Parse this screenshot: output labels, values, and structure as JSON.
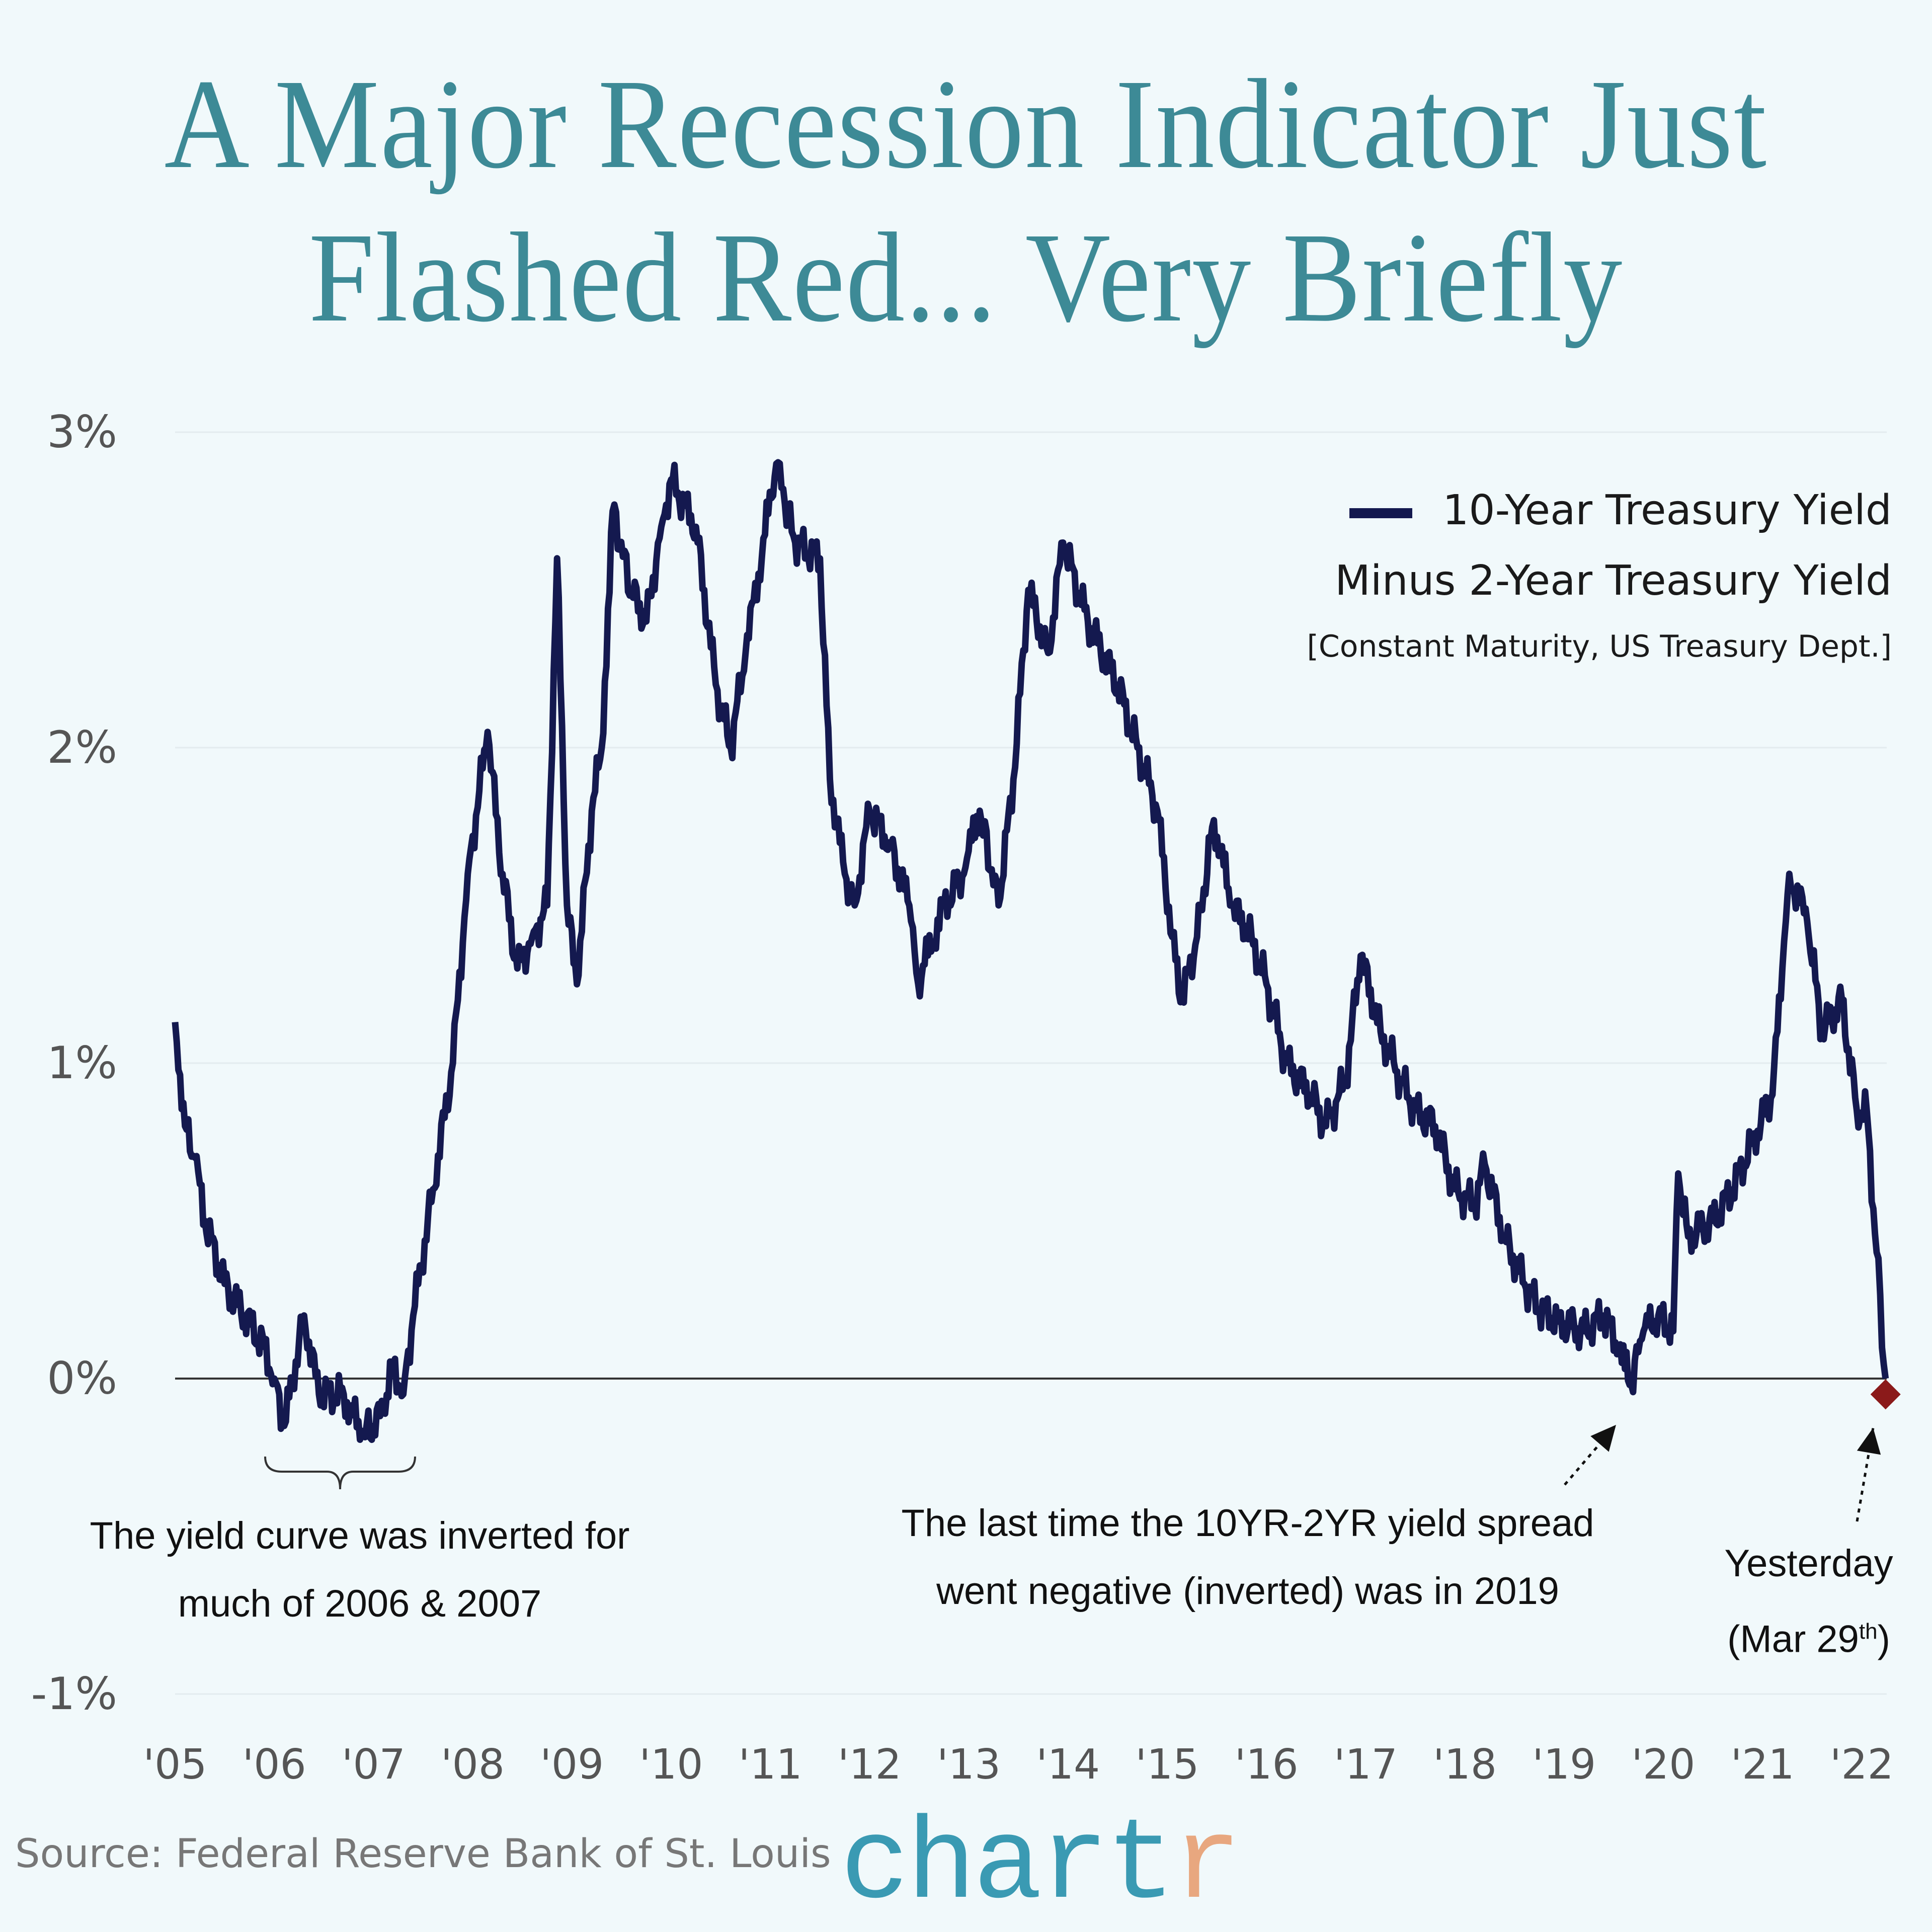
{
  "title": {
    "line1": "A Major Recession Indicator Just",
    "line2": "Flashed Red... Very Briefly"
  },
  "legend": {
    "line1": "10-Year Treasury Yield",
    "line2": "Minus 2-Year Treasury Yield",
    "line3": "[Constant Maturity, US Treasury Dept.]"
  },
  "annotations": {
    "inverted_2006": {
      "line1": "The yield curve was inverted for",
      "line2": "much of 2006 & 2007"
    },
    "last_time": {
      "line1": "The last time the 10YR-2YR yield spread",
      "line2": "went negative (inverted) was in 2019"
    },
    "yesterday": {
      "line1": "Yesterday",
      "line2_pre": "(Mar 29",
      "line2_sup": "th",
      "line2_post": ")"
    }
  },
  "source": "Source:  Federal Reserve Bank of St. Louis",
  "logo": {
    "main": "chart",
    "accent": "r"
  },
  "colors": {
    "line": "#14194f",
    "title": "#3d8a96",
    "marker": "#8b1a1a",
    "logo": "#3a9ab3",
    "logo_accent": "#e8a77f"
  },
  "chart_data": {
    "type": "line",
    "title": "A Major Recession Indicator Just Flashed Red... Very Briefly",
    "xlabel": "",
    "ylabel": "",
    "ylim": [
      -1,
      3
    ],
    "xlim": [
      2005,
      2022.25
    ],
    "yticks": [
      3,
      2,
      1,
      0,
      -1
    ],
    "ytick_labels": [
      "3%",
      "2%",
      "1%",
      "0%",
      "-1%"
    ],
    "xticks": [
      2005,
      2006,
      2007,
      2008,
      2009,
      2010,
      2011,
      2012,
      2013,
      2014,
      2015,
      2016,
      2017,
      2018,
      2019,
      2020,
      2021,
      2022
    ],
    "xtick_labels": [
      "'05",
      "'06",
      "'07",
      "'08",
      "'09",
      "'10",
      "'11",
      "'12",
      "'13",
      "'14",
      "'15",
      "'16",
      "'17",
      "'18",
      "'19",
      "'20",
      "'21",
      "'22"
    ],
    "grid": true,
    "legend_position": "top-right",
    "series": [
      {
        "name": "10-Year Treasury Yield Minus 2-Year Treasury Yield",
        "x": [
          2005.0,
          2005.1,
          2005.2,
          2005.3,
          2005.5,
          2005.7,
          2005.9,
          2006.0,
          2006.1,
          2006.3,
          2006.45,
          2006.7,
          2006.88,
          2007.0,
          2007.1,
          2007.2,
          2007.3,
          2007.4,
          2007.6,
          2007.8,
          2007.95,
          2008.15,
          2008.3,
          2008.45,
          2008.6,
          2008.75,
          2008.85,
          2008.95,
          2009.05,
          2009.2,
          2009.3,
          2009.41,
          2009.6,
          2009.75,
          2009.9,
          2010.0,
          2010.25,
          2010.45,
          2010.6,
          2010.75,
          2011.06,
          2011.25,
          2011.5,
          2011.6,
          2011.75,
          2011.85,
          2012.0,
          2012.2,
          2012.4,
          2012.49,
          2012.75,
          2012.95,
          2013.11,
          2013.3,
          2013.45,
          2013.6,
          2013.8,
          2013.95,
          2014.2,
          2014.5,
          2014.7,
          2014.9,
          2015.05,
          2015.15,
          2015.3,
          2015.47,
          2015.65,
          2015.85,
          2016.0,
          2016.2,
          2016.45,
          2016.6,
          2016.8,
          2016.95,
          2017.15,
          2017.35,
          2017.5,
          2017.7,
          2017.9,
          2018.1,
          2018.2,
          2018.4,
          2018.6,
          2018.75,
          2018.95,
          2019.2,
          2019.4,
          2019.55,
          2019.66,
          2019.8,
          2019.95,
          2020.1,
          2020.15,
          2020.25,
          2020.5,
          2020.7,
          2020.9,
          2021.1,
          2021.2,
          2021.27,
          2021.45,
          2021.6,
          2021.8,
          2021.95,
          2022.05,
          2022.15,
          2022.24
        ],
        "values": [
          1.13,
          0.8,
          0.7,
          0.5,
          0.3,
          0.2,
          0.1,
          0.0,
          -0.15,
          0.2,
          -0.05,
          -0.05,
          -0.18,
          -0.15,
          -0.1,
          0.05,
          -0.05,
          0.2,
          0.6,
          1.0,
          1.6,
          2.05,
          1.6,
          1.3,
          1.4,
          1.5,
          2.6,
          1.5,
          1.25,
          1.8,
          2.0,
          2.75,
          2.5,
          2.4,
          2.7,
          2.85,
          2.7,
          2.2,
          2.0,
          2.3,
          2.9,
          2.65,
          2.6,
          1.9,
          1.6,
          1.5,
          1.8,
          1.7,
          1.5,
          1.25,
          1.5,
          1.6,
          1.8,
          1.5,
          1.9,
          2.5,
          2.3,
          2.65,
          2.4,
          2.2,
          2.0,
          1.8,
          1.4,
          1.2,
          1.4,
          1.77,
          1.5,
          1.4,
          1.25,
          1.0,
          0.9,
          0.8,
          0.95,
          1.34,
          1.1,
          0.95,
          0.85,
          0.8,
          0.6,
          0.55,
          0.68,
          0.45,
          0.3,
          0.22,
          0.18,
          0.15,
          0.2,
          0.1,
          -0.02,
          0.15,
          0.2,
          0.15,
          0.65,
          0.45,
          0.5,
          0.6,
          0.75,
          0.9,
          1.3,
          1.6,
          1.45,
          1.1,
          1.2,
          0.85,
          0.85,
          0.4,
          0.0
        ]
      }
    ],
    "highlight_point": {
      "x": 2022.24,
      "y": -0.05,
      "label": "Yesterday (Mar 29th)"
    }
  }
}
